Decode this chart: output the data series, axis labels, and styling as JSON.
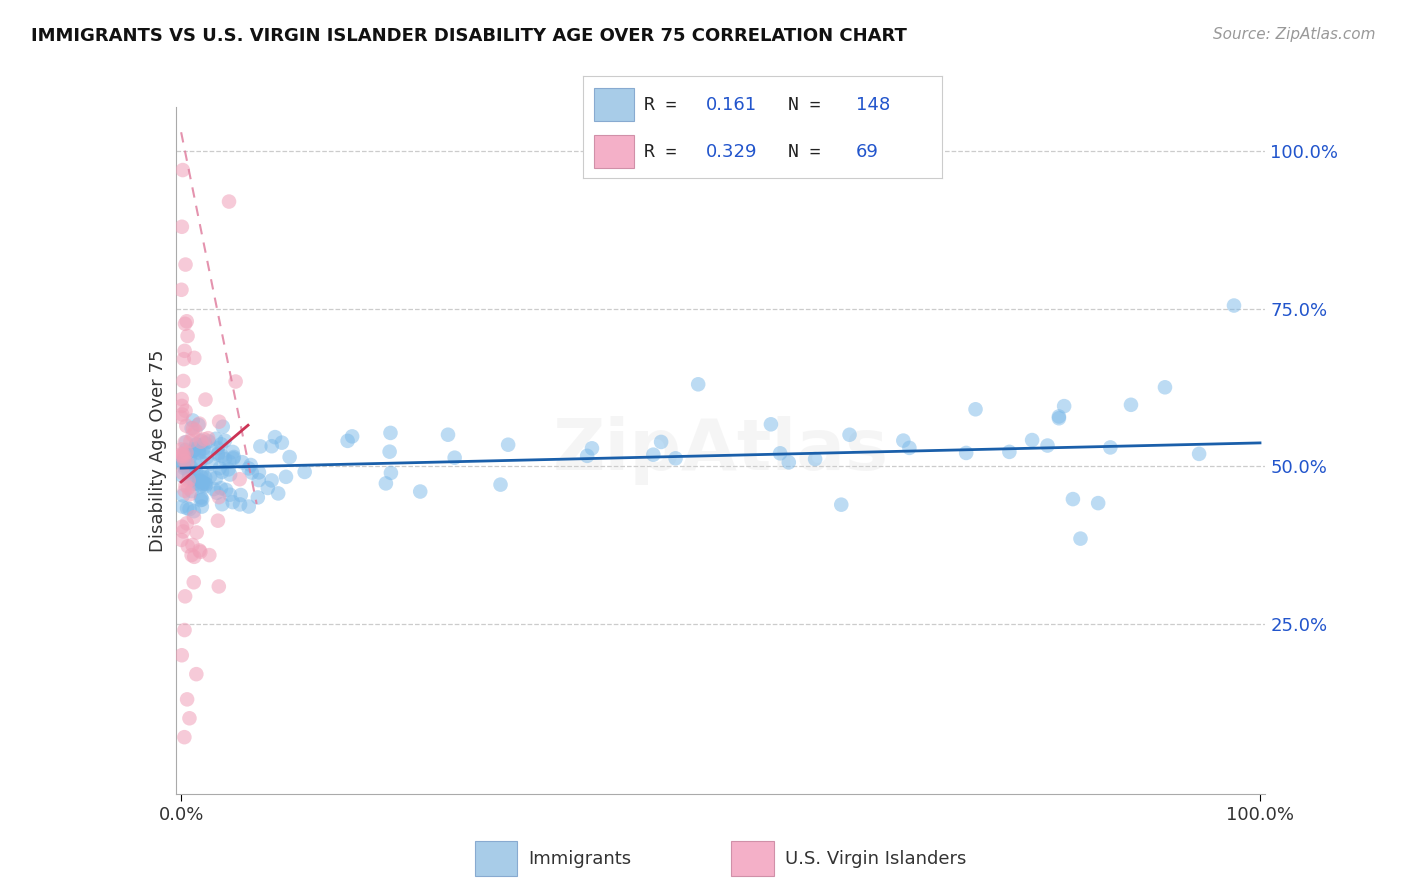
{
  "title": "IMMIGRANTS VS U.S. VIRGIN ISLANDER DISABILITY AGE OVER 75 CORRELATION CHART",
  "source_text": "Source: ZipAtlas.com",
  "ylabel": "Disability Age Over 75",
  "watermark": "ZipAtlas",
  "background_color": "#ffffff",
  "blue_color": "#7ab8e8",
  "blue_edge_color": "#5a98c8",
  "pink_color": "#f0a0b8",
  "pink_edge_color": "#d07090",
  "trend_blue_color": "#1a5faa",
  "trend_pink_color": "#cc3355",
  "dashed_pink_color": "#e080a0",
  "legend_patch_blue": "#a8cce8",
  "legend_patch_pink": "#f4b0c8",
  "R_N_color": "#2255cc",
  "grid_color": "#cccccc",
  "source_color": "#999999",
  "title_color": "#111111",
  "right_tick_color": "#2255cc"
}
